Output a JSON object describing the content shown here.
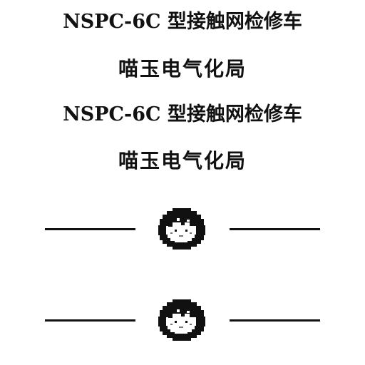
{
  "heading": {
    "line1": "NSPC-6C 型接触网检修车",
    "line2": "喵玉电气化局",
    "line3": "NSPC-6C 型接触网检修车",
    "line4": "喵玉电气化局"
  },
  "icons": {
    "mascot": "pixel-face-icon"
  },
  "colors": {
    "text": "#111111",
    "background": "#ffffff"
  }
}
